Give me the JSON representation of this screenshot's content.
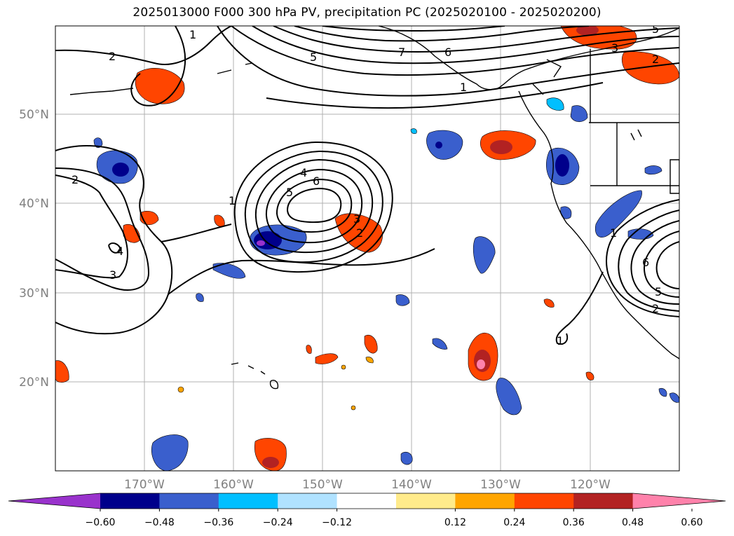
{
  "title": "2025013000 F000 300 hPa PV, precipitation PC (2025020100 - 2025020200)",
  "lat_labels": [
    "50°N",
    "40°N",
    "30°N",
    "20°N"
  ],
  "lon_labels": [
    "170°W",
    "160°W",
    "150°W",
    "140°W",
    "130°W",
    "120°W"
  ],
  "colorbar": {
    "ticks": [
      "−0.60",
      "−0.48",
      "−0.36",
      "−0.24",
      "−0.12",
      "0.12",
      "0.24",
      "0.36",
      "0.48",
      "0.60"
    ],
    "colors": [
      "#9932cc",
      "#00008b",
      "#3a5fcd",
      "#00bfff",
      "#b0e2ff",
      "#ffffff",
      "#ffeb8b",
      "#ffa500",
      "#ff4500",
      "#b22222",
      "#ff82ab"
    ]
  },
  "contour_labels": [
    "1",
    "2",
    "5",
    "7",
    "6",
    "1",
    "3",
    "2",
    "5",
    "2",
    "4",
    "5",
    "6",
    "1",
    "3",
    "2",
    "4",
    "3",
    "1",
    "6",
    "5",
    "2",
    "1"
  ]
}
